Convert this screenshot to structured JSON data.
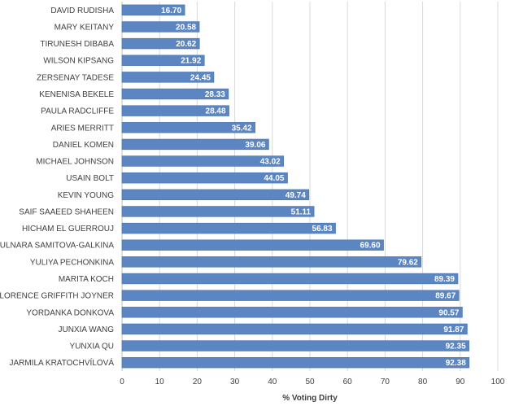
{
  "chart_data": {
    "type": "bar",
    "orientation": "horizontal",
    "title": "",
    "xlabel": "% Voting Dirty",
    "ylabel": "",
    "xlim": [
      0,
      100
    ],
    "xticks": [
      0,
      10,
      20,
      30,
      40,
      50,
      60,
      70,
      80,
      90,
      100
    ],
    "grid": "vertical",
    "legend": "none",
    "bar_color": "#5b86c1",
    "bar_edge_color": "#4a73ad",
    "categories": [
      "DAVID RUDISHA",
      "MARY KEITANY",
      "TIRUNESH DIBABA",
      "WILSON KIPSANG",
      "ZERSENAY TADESE",
      "KENENISA BEKELE",
      "PAULA RADCLIFFE",
      "ARIES MERRITT",
      "DANIEL KOMEN",
      "MICHAEL JOHNSON",
      "USAIN BOLT",
      "KEVIN YOUNG",
      "SAIF SAAEED SHAHEEN",
      "HICHAM EL GUERROUJ",
      "GULNARA SAMITOVA-GALKINA",
      "YULIYA PECHONKINA",
      "MARITA KOCH",
      "FLORENCE GRIFFITH JOYNER",
      "YORDANKA DONKOVA",
      "JUNXIA WANG",
      "YUNXIA QU",
      "JARMILA KRATOCHVÍLOVÁ"
    ],
    "values": [
      16.7,
      20.58,
      20.62,
      21.92,
      24.45,
      28.33,
      28.48,
      35.42,
      39.06,
      43.02,
      44.05,
      49.74,
      51.11,
      56.83,
      69.6,
      79.62,
      89.39,
      89.67,
      90.57,
      91.87,
      92.35,
      92.38
    ],
    "data_labels": [
      "16.70",
      "20.58",
      "20.62",
      "21.92",
      "24.45",
      "28.33",
      "28.48",
      "35.42",
      "39.06",
      "43.02",
      "44.05",
      "49.74",
      "51.11",
      "56.83",
      "69.60",
      "79.62",
      "89.39",
      "89.67",
      "90.57",
      "91.87",
      "92.35",
      "92.38"
    ]
  }
}
